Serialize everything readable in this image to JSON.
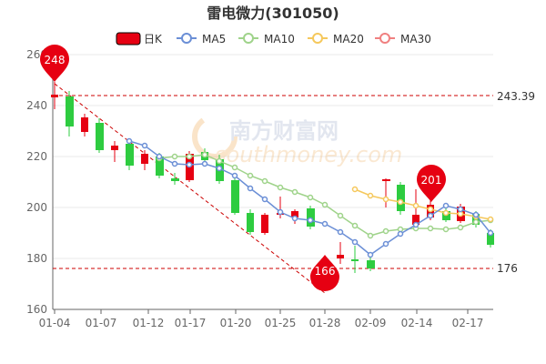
{
  "chart_data": {
    "type": "candlestick",
    "title": "雷电微力(301050)",
    "legend": {
      "placement": "top-center",
      "items": [
        {
          "name": "日K",
          "color": "#e60012"
        },
        {
          "name": "MA5",
          "color": "#6b8fd6"
        },
        {
          "name": "MA10",
          "color": "#9fd38a"
        },
        {
          "name": "MA20",
          "color": "#f5c85c"
        },
        {
          "name": "MA30",
          "color": "#f08080"
        }
      ]
    },
    "y_axis": {
      "ticks": [
        "160",
        "180",
        "200",
        "220",
        "240",
        "260"
      ],
      "min": 160,
      "max": 265
    },
    "x_axis": {
      "ticks": [
        "01-04",
        "01-07",
        "01-12",
        "01-17",
        "01-20",
        "01-25",
        "01-28",
        "02-09",
        "02-14",
        "02-17"
      ]
    },
    "reference_lines": [
      {
        "label": "243.39",
        "value": 243.39
      },
      {
        "label": "176",
        "value": 176
      }
    ],
    "callouts": [
      {
        "label": "248",
        "kind": "high"
      },
      {
        "label": "201",
        "kind": "local-high"
      },
      {
        "label": "166",
        "kind": "low"
      }
    ],
    "watermark": {
      "text_cn": "南方财富网",
      "text_en": "southmoney.com"
    },
    "colors": {
      "up": "#e60012",
      "down": "#2ecc40",
      "grid": "#e8e8e8",
      "axis": "#666666"
    }
  }
}
